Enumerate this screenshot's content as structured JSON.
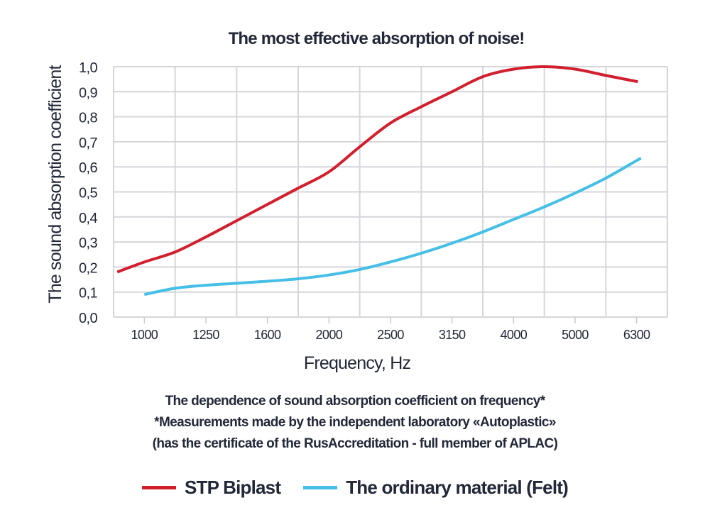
{
  "chart_data": {
    "type": "line",
    "title": "The most effective absorption of noise!",
    "xlabel": "Frequency, Hz",
    "ylabel": "The sound absorption coefficient",
    "categories": [
      "1000",
      "1250",
      "1600",
      "2000",
      "2500",
      "3150",
      "4000",
      "5000",
      "6300"
    ],
    "x_index_range": [
      -0.5,
      8.5
    ],
    "ylim": [
      0,
      1
    ],
    "yticks": [
      "0,0",
      "0,1",
      "0,2",
      "0,3",
      "0,4",
      "0,5",
      "0,6",
      "0,7",
      "0,8",
      "0,9",
      "1,0"
    ],
    "grid": true,
    "legend_position": "bottom",
    "series": [
      {
        "name": "STP Biplast",
        "color": "#d11f2e",
        "x": [
          -0.44,
          0,
          0.5,
          1,
          1.5,
          2,
          2.5,
          3,
          3.5,
          4,
          4.5,
          5,
          5.5,
          6,
          6.5,
          7,
          7.5,
          8.02
        ],
        "y": [
          0.18,
          0.22,
          0.26,
          0.32,
          0.385,
          0.45,
          0.515,
          0.58,
          0.68,
          0.775,
          0.84,
          0.9,
          0.96,
          0.99,
          1.0,
          0.99,
          0.965,
          0.94
        ]
      },
      {
        "name": "The ordinary material (Felt)",
        "color": "#45bfe6",
        "x": [
          0,
          0.5,
          1,
          1.5,
          2,
          2.5,
          3,
          3.5,
          4,
          4.5,
          5,
          5.5,
          6,
          6.5,
          7,
          7.5,
          8.07
        ],
        "y": [
          0.09,
          0.115,
          0.127,
          0.135,
          0.143,
          0.153,
          0.168,
          0.19,
          0.22,
          0.255,
          0.295,
          0.34,
          0.39,
          0.44,
          0.495,
          0.555,
          0.635
        ]
      }
    ]
  },
  "notes": {
    "line1": "The dependence of sound absorption coefficient on frequency*",
    "line2": "*Measurements made by the independent laboratory «Autoplastic»",
    "line3": "(has the certificate of the RusAccreditation - full member of APLAC)"
  }
}
